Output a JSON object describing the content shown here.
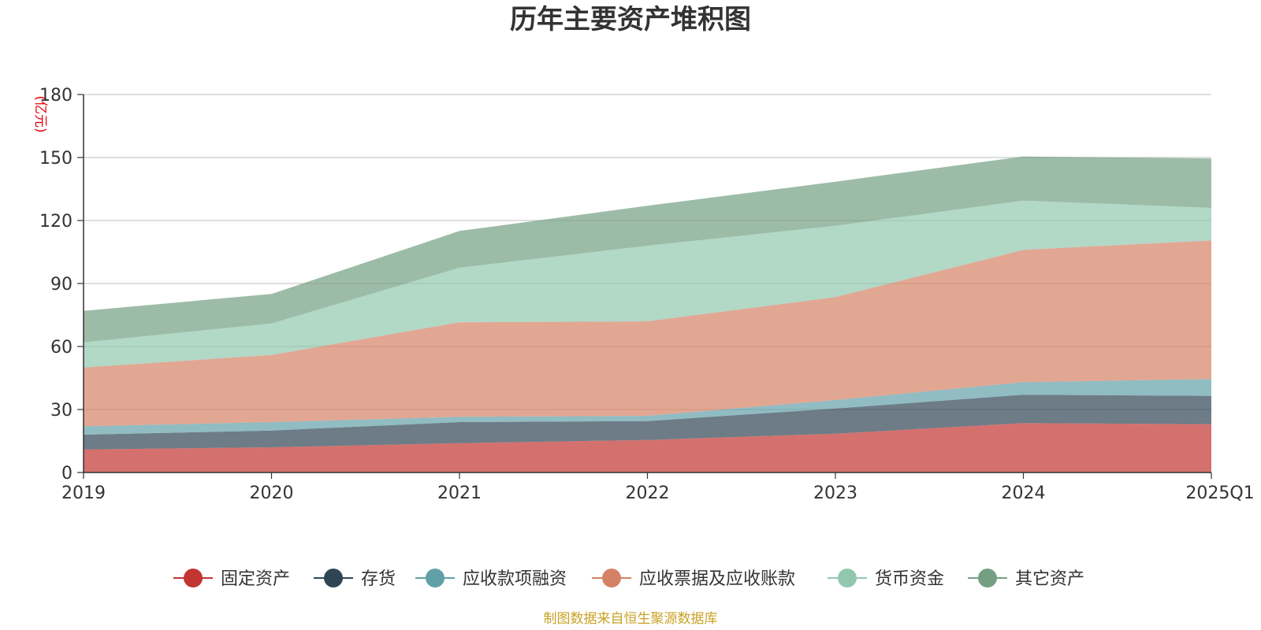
{
  "chart_data": {
    "type": "area",
    "stacked": true,
    "title": "历年主要资产堆积图",
    "unit_label": "(亿元)",
    "source_note": "制图数据来自恒生聚源数据库",
    "categories": [
      "2019",
      "2020",
      "2021",
      "2022",
      "2023",
      "2024",
      "2025Q1"
    ],
    "ylim": [
      0,
      180
    ],
    "yticks": [
      0,
      30,
      60,
      90,
      120,
      150,
      180
    ],
    "grid": true,
    "legend_position": "bottom",
    "series": [
      {
        "name": "固定资产",
        "color": "#c23531",
        "values": [
          11,
          12,
          14,
          15.5,
          18.5,
          23.5,
          23
        ]
      },
      {
        "name": "存货",
        "color": "#2f4554",
        "values": [
          7,
          8,
          10,
          9,
          12,
          13.5,
          13.5
        ]
      },
      {
        "name": "应收款项融资",
        "color": "#61a0a8",
        "values": [
          4,
          4,
          2.5,
          2.5,
          4,
          6,
          8
        ]
      },
      {
        "name": "应收票据及应收账款",
        "color": "#d48265",
        "values": [
          28,
          32,
          45,
          45,
          49,
          63,
          66
        ]
      },
      {
        "name": "货币资金",
        "color": "#91c7ae",
        "values": [
          12,
          15,
          26,
          36,
          34,
          23.5,
          15.5
        ]
      },
      {
        "name": "其它资产",
        "color": "#749f83",
        "values": [
          15,
          14,
          17.5,
          19,
          21,
          21,
          23.5
        ]
      }
    ]
  }
}
